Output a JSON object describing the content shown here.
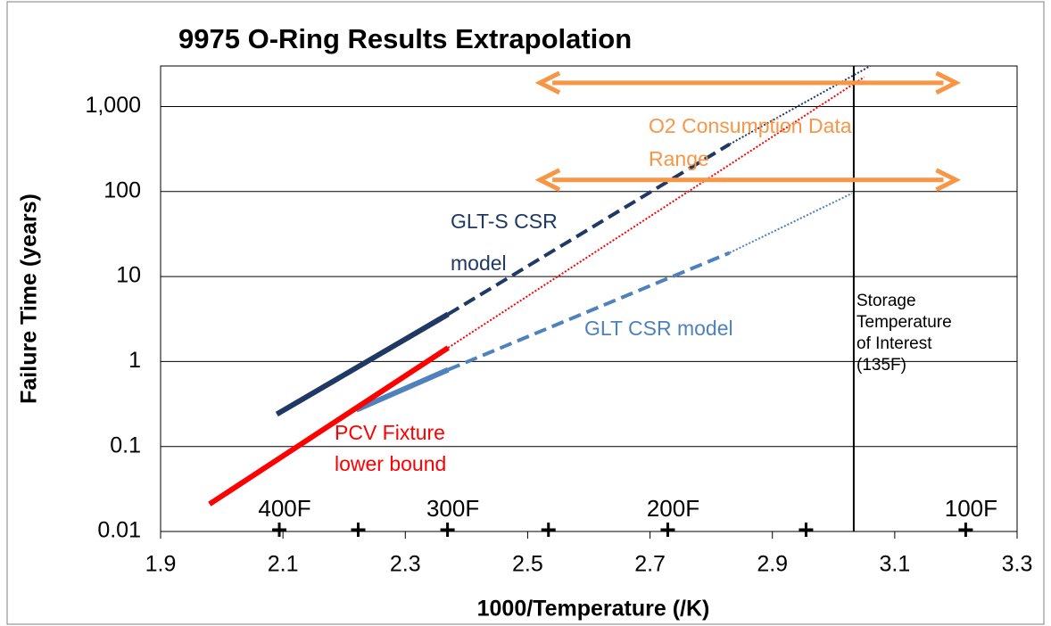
{
  "chart_data": {
    "type": "line",
    "title": "9975 O-Ring Results Extrapolation",
    "x_label": "1000/Temperature (/K)",
    "y_label": "Failure Time (years)",
    "xlim": [
      1.9,
      3.3
    ],
    "xticks": [
      1.9,
      2.1,
      2.3,
      2.5,
      2.7,
      2.9,
      3.1,
      3.3
    ],
    "ylim": [
      0.01,
      3000
    ],
    "log_y": true,
    "yticks": [
      0.01,
      0.1,
      1,
      10,
      100,
      {
        "value": 1000,
        "label": "1,000"
      }
    ],
    "grid": true,
    "series": [
      {
        "color": "#1f3864",
        "style": "solid",
        "x": [
          2.09,
          2.37
        ],
        "y": [
          0.24,
          3.6
        ]
      },
      {
        "color": "#1f3864",
        "style": "dashed",
        "x": [
          2.37,
          2.83
        ],
        "y": [
          3.6,
          360
        ]
      },
      {
        "color": "#1f3864",
        "style": "dotted",
        "x": [
          2.83,
          3.06
        ],
        "y": [
          360,
          3000
        ]
      },
      {
        "color": "#4f81bd",
        "style": "solid",
        "x": [
          2.22,
          2.37
        ],
        "y": [
          0.27,
          0.8
        ]
      },
      {
        "color": "#4f81bd",
        "style": "dashed",
        "x": [
          2.37,
          2.83
        ],
        "y": [
          0.8,
          19
        ]
      },
      {
        "color": "#4f81bd",
        "style": "dotted",
        "x": [
          2.83,
          3.03
        ],
        "y": [
          19,
          95
        ]
      },
      {
        "color": "#ff0000",
        "style": "solid",
        "x": [
          1.98,
          2.37
        ],
        "y": [
          0.021,
          1.45
        ]
      },
      {
        "color": "#ff0000",
        "style": "dotted",
        "x": [
          2.37,
          3.05
        ],
        "y": [
          1.45,
          2220
        ]
      }
    ],
    "arrows": [
      {
        "color": "#f79646",
        "x": [
          2.52,
          3.2
        ],
        "y": 1900
      },
      {
        "color": "#f79646",
        "x": [
          2.52,
          3.2
        ],
        "y": 137
      }
    ],
    "reference_line": {
      "x": 3.033,
      "color": "#000000"
    },
    "temperature_marks": [
      2.094,
      2.223,
      2.369,
      2.534,
      2.729,
      2.955,
      3.216
    ],
    "temperature_labels": [
      {
        "value": 2.094,
        "label": "400F"
      },
      {
        "value": 2.369,
        "label": "300F"
      },
      {
        "value": 2.729,
        "label": "200F"
      },
      {
        "value": 3.216,
        "label": "100F"
      }
    ],
    "annotations": [
      {
        "color": "#1f3864",
        "lines": [
          "GLT-S CSR",
          "model"
        ]
      },
      {
        "color": "#4f81bd",
        "lines": [
          "GLT CSR model"
        ]
      },
      {
        "color": "#ff0000",
        "lines": [
          "PCV Fixture",
          "lower bound"
        ]
      },
      {
        "color": "#f79646",
        "lines": [
          "O2 Consumption Data",
          "Range"
        ]
      },
      {
        "color": "#000000",
        "lines": [
          "Storage",
          "Temperature",
          "of Interest",
          "(135F)"
        ]
      }
    ]
  }
}
